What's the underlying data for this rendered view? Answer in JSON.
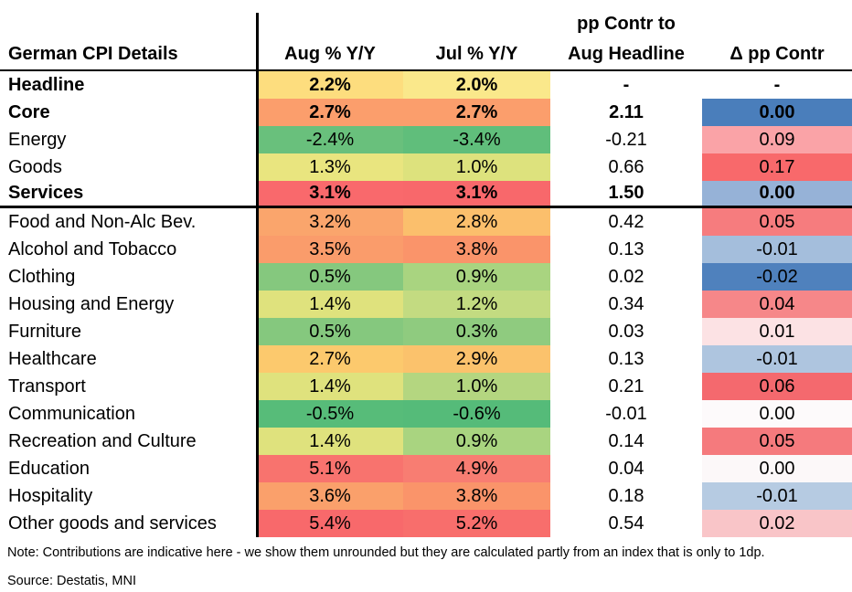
{
  "chart_data": {
    "type": "table",
    "title": "German CPI Details",
    "columns": [
      "German CPI Details",
      "Aug % Y/Y",
      "Jul % Y/Y",
      "pp Contr to Aug Headline",
      "Δ pp Contr"
    ],
    "heatmap_scale_pct": {
      "min_color": "#63BE7B",
      "mid_color": "#FFEB84",
      "max_color": "#F8696B"
    },
    "heatmap_scale_delta": {
      "min_color": "#4F81BD",
      "mid_color": "#FCFCFF",
      "max_color": "#F8696B"
    },
    "rows": [
      {
        "label": "Headline",
        "group": "aggregate",
        "bold": true,
        "aug": "2.2%",
        "aug_bg": "#FDDD7E",
        "jul": "2.0%",
        "jul_bg": "#FAE88B",
        "pp": "-",
        "delta": "-",
        "delta_bg": ""
      },
      {
        "label": "Core",
        "group": "aggregate",
        "bold": true,
        "aug": "2.7%",
        "aug_bg": "#FB9E6C",
        "jul": "2.7%",
        "jul_bg": "#FB9E6C",
        "pp": "2.11",
        "delta": "0.00",
        "delta_bg": "#4A7EBB"
      },
      {
        "label": "Energy",
        "group": "aggregate",
        "bold": false,
        "aug": "-2.4%",
        "aug_bg": "#69C07C",
        "jul": "-3.4%",
        "jul_bg": "#60BE7B",
        "pp": "-0.21",
        "delta": "0.09",
        "delta_bg": "#FAA3A7"
      },
      {
        "label": "Goods",
        "group": "aggregate",
        "bold": false,
        "aug": "1.3%",
        "aug_bg": "#E9E57F",
        "jul": "1.0%",
        "jul_bg": "#DDE27D",
        "pp": "0.66",
        "delta": "0.17",
        "delta_bg": "#F8696B"
      },
      {
        "label": "Services",
        "group": "aggregate",
        "bold": true,
        "aug": "3.1%",
        "aug_bg": "#F9696C",
        "jul": "3.1%",
        "jul_bg": "#F8686B",
        "pp": "1.50",
        "delta": "0.00",
        "delta_bg": "#96B2D7"
      },
      {
        "label": "Food and Non-Alc Bev.",
        "group": "component",
        "bold": false,
        "aug": "3.2%",
        "aug_bg": "#FAA56C",
        "jul": "2.8%",
        "jul_bg": "#FBBF6C",
        "pp": "0.42",
        "delta": "0.05",
        "delta_bg": "#F67C7E"
      },
      {
        "label": "Alcohol and Tobacco",
        "group": "component",
        "bold": false,
        "aug": "3.5%",
        "aug_bg": "#FA9C6B",
        "jul": "3.8%",
        "jul_bg": "#FA946A",
        "pp": "0.13",
        "delta": "-0.01",
        "delta_bg": "#A4BEDC"
      },
      {
        "label": "Clothing",
        "group": "component",
        "bold": false,
        "aug": "0.5%",
        "aug_bg": "#85C87E",
        "jul": "0.9%",
        "jul_bg": "#A9D480",
        "pp": "0.02",
        "delta": "-0.02",
        "delta_bg": "#4F81BD"
      },
      {
        "label": "Housing and Energy",
        "group": "component",
        "bold": false,
        "aug": "1.4%",
        "aug_bg": "#DFE27D",
        "jul": "1.2%",
        "jul_bg": "#C3DB81",
        "pp": "0.34",
        "delta": "0.04",
        "delta_bg": "#F68789"
      },
      {
        "label": "Furniture",
        "group": "component",
        "bold": false,
        "aug": "0.5%",
        "aug_bg": "#85C87E",
        "jul": "0.3%",
        "jul_bg": "#8FCB7F",
        "pp": "0.03",
        "delta": "0.01",
        "delta_bg": "#FCE2E4"
      },
      {
        "label": "Healthcare",
        "group": "component",
        "bold": false,
        "aug": "2.7%",
        "aug_bg": "#FCC96D",
        "jul": "2.9%",
        "jul_bg": "#FBC26C",
        "pp": "0.13",
        "delta": "-0.01",
        "delta_bg": "#AEC5DF"
      },
      {
        "label": "Transport",
        "group": "component",
        "bold": false,
        "aug": "1.4%",
        "aug_bg": "#DFE27D",
        "jul": "1.0%",
        "jul_bg": "#B4D680",
        "pp": "0.21",
        "delta": "0.06",
        "delta_bg": "#F4696E"
      },
      {
        "label": "Communication",
        "group": "component",
        "bold": false,
        "aug": "-0.5%",
        "aug_bg": "#57BC79",
        "jul": "-0.6%",
        "jul_bg": "#55BB79",
        "pp": "-0.01",
        "delta": "0.00",
        "delta_bg": "#FDFAFB"
      },
      {
        "label": "Recreation and Culture",
        "group": "component",
        "bold": false,
        "aug": "1.4%",
        "aug_bg": "#DFE27D",
        "jul": "0.9%",
        "jul_bg": "#A9D480",
        "pp": "0.14",
        "delta": "0.05",
        "delta_bg": "#F57A7D"
      },
      {
        "label": "Education",
        "group": "component",
        "bold": false,
        "aug": "5.1%",
        "aug_bg": "#F8736E",
        "jul": "4.9%",
        "jul_bg": "#F87D72",
        "pp": "0.04",
        "delta": "0.00",
        "delta_bg": "#FCF8F9"
      },
      {
        "label": "Hospitality",
        "group": "component",
        "bold": false,
        "aug": "3.6%",
        "aug_bg": "#FAA06B",
        "jul": "3.8%",
        "jul_bg": "#FA946A",
        "pp": "0.18",
        "delta": "-0.01",
        "delta_bg": "#B6CBE2"
      },
      {
        "label": "Other goods and services",
        "group": "component",
        "bold": false,
        "aug": "5.4%",
        "aug_bg": "#F8696B",
        "jul": "5.2%",
        "jul_bg": "#F86E6C",
        "pp": "0.54",
        "delta": "0.02",
        "delta_bg": "#F9C5C8"
      }
    ]
  },
  "header": {
    "title": "German CPI Details",
    "aug": "Aug % Y/Y",
    "jul": "Jul % Y/Y",
    "pp_line1": "pp Contr to",
    "pp_line2": "Aug Headline",
    "delta": "Δ pp Contr"
  },
  "footer": {
    "note": "Note: Contributions are indicative here - we show them unrounded but they are calculated partly from an index that is only to 1dp.",
    "source": "Source: Destatis, MNI"
  }
}
